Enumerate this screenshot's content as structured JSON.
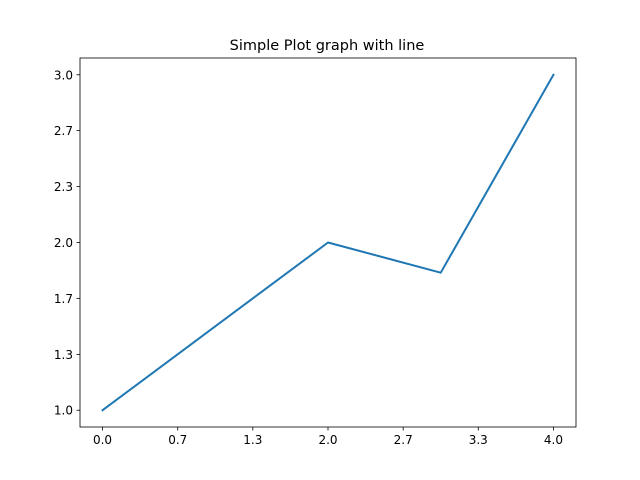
{
  "chart_data": {
    "type": "line",
    "title": "Simple Plot graph with line",
    "xlabel": "",
    "ylabel": "",
    "x": [
      0,
      2,
      3,
      4
    ],
    "series": [
      {
        "values": [
          1.0,
          2.0,
          1.82,
          3.0
        ],
        "color": "#1f77b4"
      }
    ],
    "xlim": [
      -0.2,
      4.2
    ],
    "ylim": [
      0.9,
      3.1
    ],
    "x_ticks": [
      0.0,
      0.667,
      1.333,
      2.0,
      2.667,
      3.333,
      4.0
    ],
    "x_tick_labels": [
      "0.0",
      "0.7",
      "1.3",
      "2.0",
      "2.7",
      "3.3",
      "4.0"
    ],
    "y_ticks": [
      1.0,
      1.333,
      1.667,
      2.0,
      2.333,
      2.667,
      3.0
    ],
    "y_tick_labels": [
      "1.0",
      "1.3",
      "1.7",
      "2.0",
      "2.3",
      "2.7",
      "3.0"
    ],
    "grid": false,
    "legend": false
  }
}
